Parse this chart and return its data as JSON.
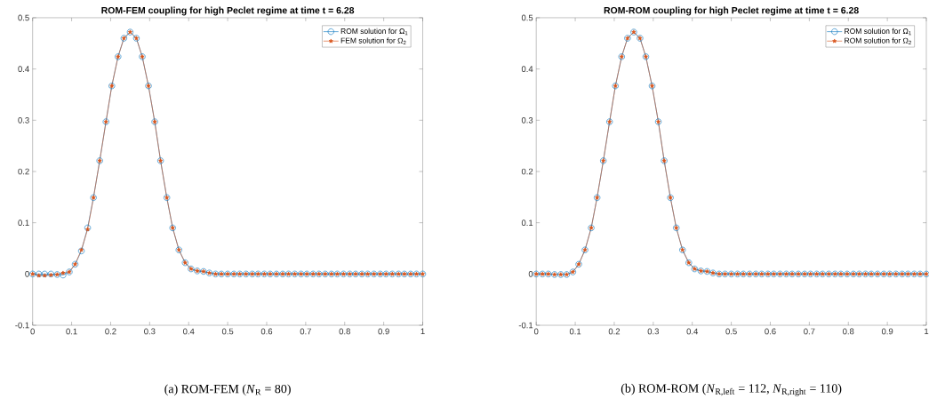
{
  "chart_data": [
    {
      "type": "line",
      "title": "ROM-FEM coupling for high Peclet regime at time t = 6.28",
      "x": [
        0,
        0.016,
        0.031,
        0.047,
        0.063,
        0.078,
        0.094,
        0.109,
        0.125,
        0.141,
        0.156,
        0.172,
        0.188,
        0.203,
        0.219,
        0.234,
        0.25,
        0.266,
        0.281,
        0.297,
        0.313,
        0.328,
        0.344,
        0.359,
        0.375,
        0.391,
        0.406,
        0.422,
        0.438,
        0.453,
        0.469,
        0.484,
        0.5,
        0.516,
        0.531,
        0.547,
        0.563,
        0.578,
        0.594,
        0.609,
        0.625,
        0.641,
        0.656,
        0.672,
        0.688,
        0.703,
        0.719,
        0.734,
        0.75,
        0.766,
        0.781,
        0.797,
        0.813,
        0.828,
        0.844,
        0.859,
        0.875,
        0.891,
        0.906,
        0.922,
        0.938,
        0.953,
        0.969,
        0.984,
        1
      ],
      "series": [
        {
          "name": "ROM solution for Ω$_{1}$",
          "color": "#0072bd",
          "marker": "circle",
          "values": [
            0,
            0,
            0,
            0,
            -0.001,
            -0.002,
            0.004,
            0.019,
            0.045,
            0.09,
            0.149,
            0.221,
            0.297,
            0.367,
            0.424,
            0.46,
            0.472,
            0.46,
            0.424,
            0.367,
            0.297,
            0.221,
            0.149,
            0.09,
            0.047,
            0.022,
            0.01,
            0.006,
            0.005,
            0.002,
            0,
            0,
            0,
            0,
            0,
            0,
            0,
            0,
            0,
            0,
            0,
            0,
            0,
            0,
            0,
            0,
            0,
            0,
            0,
            0,
            0,
            0,
            0,
            0,
            0,
            0,
            0,
            0,
            0,
            0,
            0,
            0,
            0,
            0,
            0
          ]
        },
        {
          "name": "FEM solution for Ω$_{2}$",
          "color": "#d95319",
          "marker": "star",
          "values": [
            0,
            -0.003,
            -0.003,
            -0.002,
            -0.001,
            0.002,
            0.004,
            0.019,
            0.047,
            0.087,
            0.149,
            0.221,
            0.297,
            0.367,
            0.424,
            0.46,
            0.472,
            0.46,
            0.424,
            0.367,
            0.297,
            0.221,
            0.149,
            0.09,
            0.047,
            0.022,
            0.01,
            0.006,
            0.005,
            0.002,
            0,
            0,
            0,
            0,
            0,
            0,
            0,
            0,
            0,
            0,
            0,
            0,
            0,
            0,
            0,
            0,
            0,
            0,
            0,
            0,
            0,
            0,
            0,
            0,
            0,
            0,
            0,
            0,
            0,
            0,
            0,
            0,
            0,
            0,
            0
          ]
        }
      ],
      "xlim": [
        0,
        1
      ],
      "ylim": [
        -0.1,
        0.5
      ],
      "xticks": [
        0,
        0.1,
        0.2,
        0.3,
        0.4,
        0.5,
        0.6,
        0.7,
        0.8,
        0.9,
        1
      ],
      "yticks": [
        -0.1,
        0,
        0.1,
        0.2,
        0.3,
        0.4,
        0.5
      ],
      "legend": "top right",
      "annotations": [
        "(a) ROM-FEM (*N*$_{R}$ = 80)"
      ]
    },
    {
      "type": "line",
      "title": "ROM-ROM coupling for high Peclet regime at time t = 6.28",
      "x": [
        0,
        0.016,
        0.031,
        0.047,
        0.063,
        0.078,
        0.094,
        0.109,
        0.125,
        0.141,
        0.156,
        0.172,
        0.188,
        0.203,
        0.219,
        0.234,
        0.25,
        0.266,
        0.281,
        0.297,
        0.313,
        0.328,
        0.344,
        0.359,
        0.375,
        0.391,
        0.406,
        0.422,
        0.438,
        0.453,
        0.469,
        0.484,
        0.5,
        0.516,
        0.531,
        0.547,
        0.563,
        0.578,
        0.594,
        0.609,
        0.625,
        0.641,
        0.656,
        0.672,
        0.688,
        0.703,
        0.719,
        0.734,
        0.75,
        0.766,
        0.781,
        0.797,
        0.813,
        0.828,
        0.844,
        0.859,
        0.875,
        0.891,
        0.906,
        0.922,
        0.938,
        0.953,
        0.969,
        0.984,
        1
      ],
      "series": [
        {
          "name": "ROM solution for Ω$_{1}$",
          "color": "#0072bd",
          "marker": "circle",
          "values": [
            0,
            0,
            0,
            -0.001,
            -0.001,
            -0.001,
            0.004,
            0.019,
            0.047,
            0.09,
            0.149,
            0.221,
            0.297,
            0.367,
            0.424,
            0.46,
            0.472,
            0.46,
            0.424,
            0.367,
            0.297,
            0.221,
            0.149,
            0.09,
            0.047,
            0.022,
            0.01,
            0.006,
            0.005,
            0.002,
            0,
            0,
            0,
            0,
            0,
            0,
            0,
            0,
            0,
            0,
            0,
            0,
            0,
            0,
            0,
            0,
            0,
            0,
            0,
            0,
            0,
            0,
            0,
            0,
            0,
            0,
            0,
            0,
            0,
            0,
            0,
            0,
            0,
            0,
            0
          ]
        },
        {
          "name": "ROM solution for Ω$_{2}$",
          "color": "#d95319",
          "marker": "star",
          "values": [
            0,
            0,
            0,
            -0.001,
            -0.001,
            -0.001,
            0.004,
            0.019,
            0.047,
            0.09,
            0.149,
            0.221,
            0.297,
            0.367,
            0.424,
            0.46,
            0.472,
            0.46,
            0.424,
            0.367,
            0.297,
            0.221,
            0.149,
            0.09,
            0.047,
            0.022,
            0.01,
            0.006,
            0.005,
            0.002,
            0,
            0,
            0,
            0,
            0,
            0,
            0,
            0,
            0,
            0,
            0,
            0,
            0,
            0,
            0,
            0,
            0,
            0,
            0,
            0,
            0,
            0,
            0,
            0,
            0,
            0,
            0,
            0,
            0,
            0,
            0,
            0,
            0,
            0,
            0
          ]
        }
      ],
      "xlim": [
        0,
        1
      ],
      "ylim": [
        -0.1,
        0.5
      ],
      "xticks": [
        0,
        0.1,
        0.2,
        0.3,
        0.4,
        0.5,
        0.6,
        0.7,
        0.8,
        0.9,
        1
      ],
      "yticks": [
        -0.1,
        0,
        0.1,
        0.2,
        0.3,
        0.4,
        0.5
      ],
      "legend": "top right",
      "annotations": [
        "(b) ROM-ROM (*N*$_{R,left}$ = 112, *N*$_{R,right}$ = 110)"
      ]
    }
  ]
}
